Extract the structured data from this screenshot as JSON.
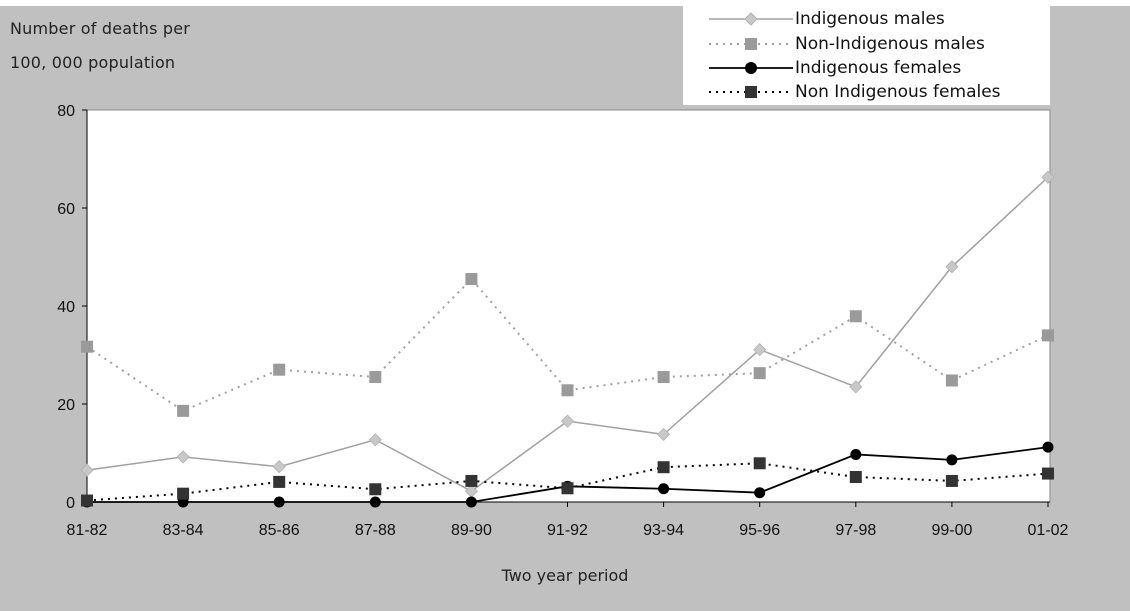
{
  "chart_data": {
    "type": "line",
    "ylabel_lines": [
      "Number of deaths per",
      "100, 000 population"
    ],
    "xlabel": "Two year period",
    "categories": [
      "81-82",
      "83-84",
      "85-86",
      "87-88",
      "89-90",
      "91-92",
      "93-94",
      "95-96",
      "97-98",
      "99-00",
      "01-02"
    ],
    "ylim": [
      0,
      80
    ],
    "yticks": [
      0,
      20,
      40,
      60,
      80
    ],
    "grid": false,
    "legend_position": "top-right",
    "series": [
      {
        "name": "Indigenous males",
        "values": [
          6.5,
          9.2,
          7.2,
          12.7,
          2.2,
          16.5,
          13.8,
          31.1,
          23.5,
          48.0,
          66.3
        ],
        "color": "#a0a0a0",
        "line_style": "solid",
        "marker": "diamond",
        "marker_color": "#c8c8c8"
      },
      {
        "name": "Non-Indigenous males",
        "values": [
          31.7,
          18.6,
          27.0,
          25.5,
          45.5,
          22.8,
          25.5,
          26.3,
          37.9,
          24.8,
          34.0
        ],
        "color": "#a0a0a0",
        "line_style": "dotted",
        "marker": "square",
        "marker_color": "#9a9a9a"
      },
      {
        "name": "Indigenous females",
        "values": [
          0,
          0,
          0,
          0,
          0,
          3.2,
          2.7,
          1.9,
          9.7,
          8.6,
          11.2
        ],
        "color": "#000000",
        "line_style": "solid",
        "marker": "circle",
        "marker_color": "#000000"
      },
      {
        "name": "Non Indigenous females",
        "values": [
          0.3,
          1.7,
          4.1,
          2.6,
          4.3,
          2.8,
          7.1,
          7.9,
          5.1,
          4.3,
          5.8
        ],
        "color": "#000000",
        "line_style": "dotted",
        "marker": "square",
        "marker_color": "#333333"
      }
    ]
  }
}
